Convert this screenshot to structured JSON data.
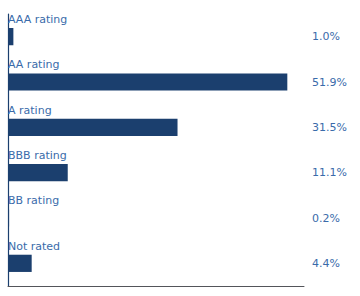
{
  "chart_data": {
    "type": "bar",
    "orientation": "horizontal",
    "categories": [
      "AAA rating",
      "AA rating",
      "A rating",
      "BBB rating",
      "BB rating",
      "Not rated"
    ],
    "values": [
      1.0,
      51.9,
      31.5,
      11.1,
      0.2,
      4.4
    ],
    "value_labels": [
      "1.0%",
      "51.9%",
      "31.5%",
      "11.1%",
      "0.2%",
      "4.4%"
    ],
    "color": "#1b3f6e",
    "xlim": [
      0,
      55
    ],
    "tick_labels": false,
    "data_labels": true,
    "grid": false
  }
}
